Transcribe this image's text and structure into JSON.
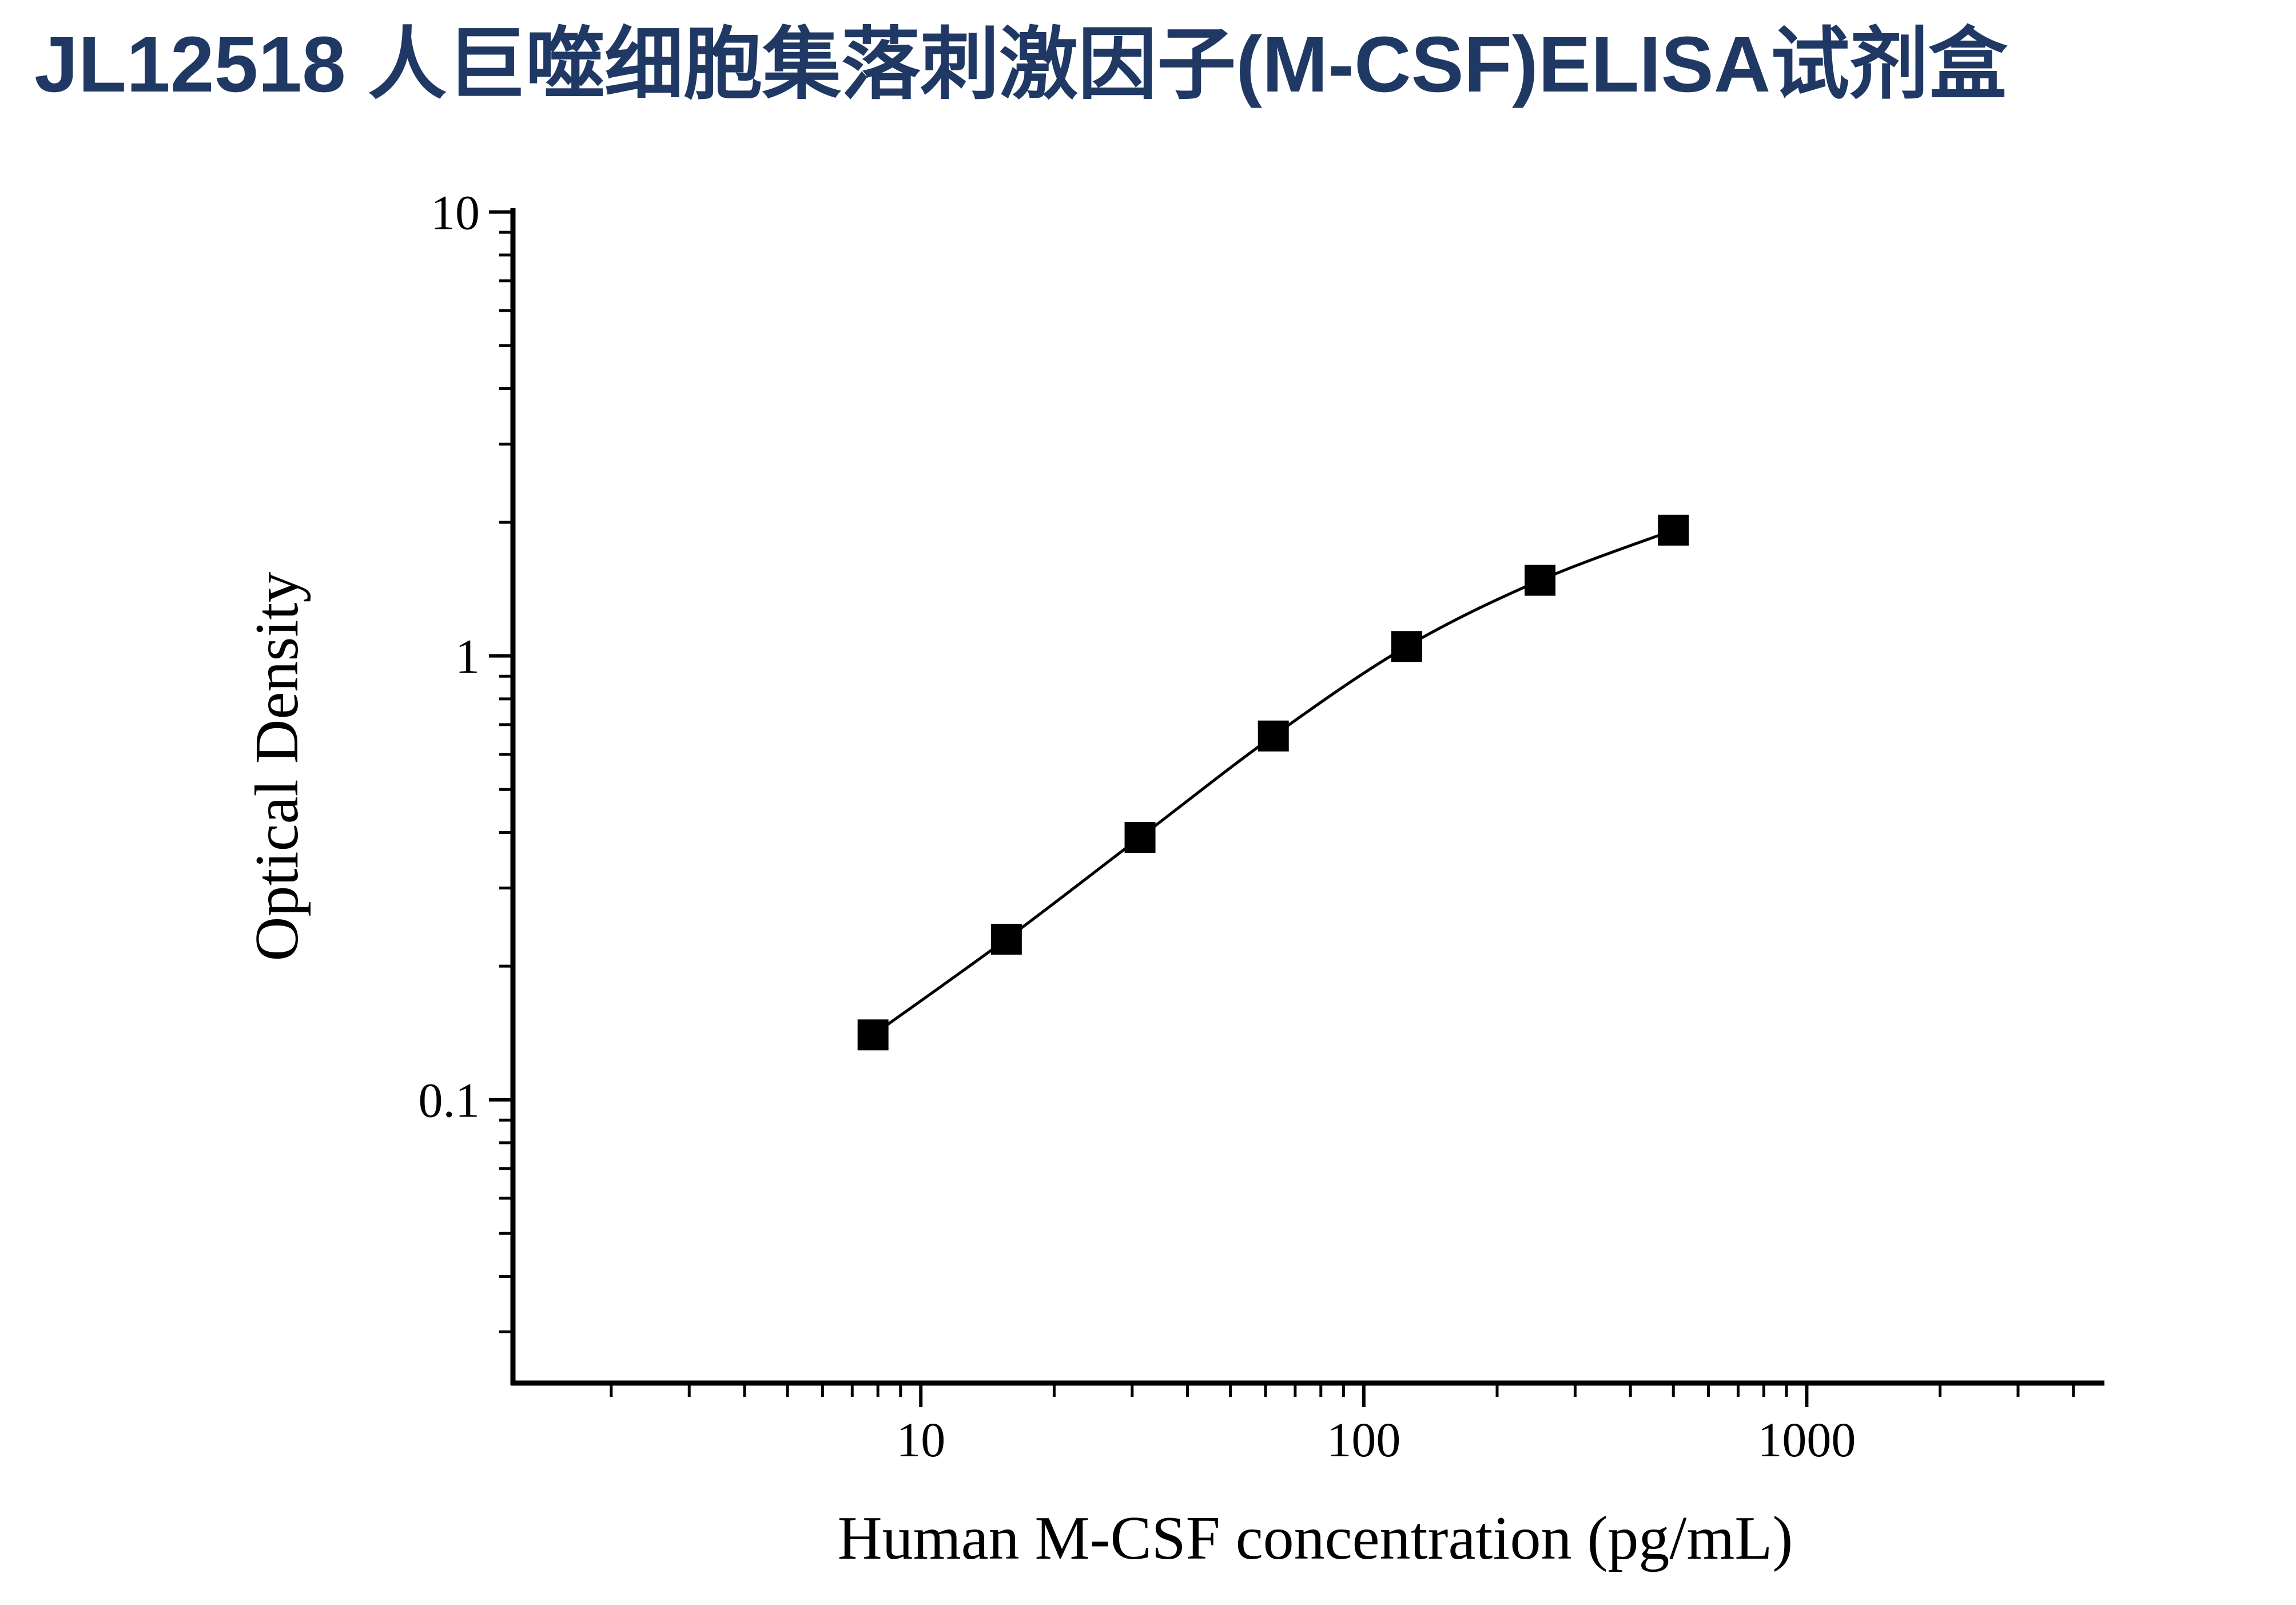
{
  "header": {
    "title": "JL12518 人巨噬细胞集落刺激因子(M-CSF)ELISA试剂盒",
    "title_color": "#1F3864"
  },
  "chart_data": {
    "type": "scatter",
    "title": "",
    "xlabel": "Human M-CSF concentration (pg/mL)",
    "ylabel": "Optical Density",
    "x_scale": "log",
    "y_scale": "log",
    "x": [
      7.8,
      15.6,
      31.25,
      62.5,
      125,
      250,
      500
    ],
    "y": [
      0.14,
      0.23,
      0.39,
      0.66,
      1.05,
      1.48,
      1.92
    ],
    "xlim": [
      1.2,
      4700
    ],
    "ylim": [
      0.023,
      10.2
    ],
    "x_major_ticks": {
      "values": [
        10,
        100,
        1000
      ],
      "labels": [
        "10",
        "100",
        "1000"
      ]
    },
    "y_major_ticks": {
      "values": [
        0.1,
        1,
        10
      ],
      "labels": [
        "0.1",
        "1",
        "10"
      ]
    },
    "grid": false,
    "legend": null,
    "marker": "filled-square",
    "marker_color": "#000000",
    "line_color": "#000000",
    "axis_color": "#000000",
    "tick_direction": "out"
  }
}
